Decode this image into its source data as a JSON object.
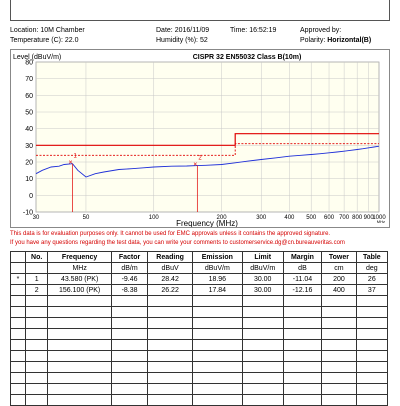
{
  "header": {
    "location_label": "Location:",
    "location_value": "10M Chamber",
    "temperature_label": "Temperature (C):",
    "temperature_value": "22.0",
    "date_label": "Date:",
    "date_value": "2016/11/09",
    "time_label": "Time:",
    "time_value": "16:52:19",
    "humidity_label": "Humidity (%):",
    "humidity_value": "52",
    "approved_label": "Approved by:",
    "polarity_label": "Polarity:",
    "polarity_value": "Horizontal(B)"
  },
  "chart_data": {
    "type": "line",
    "ylabel": "Level (dBuV/m)",
    "title": "CISPR 32 EN55032   Class B(10m)",
    "xlabel": "Frequency (MHz)",
    "x_unit": "MHz",
    "xscale": "log",
    "xlim": [
      30,
      1000
    ],
    "ylim": [
      -10,
      80
    ],
    "x_ticks": [
      30,
      50,
      100,
      200,
      300,
      400,
      500,
      600,
      700,
      800,
      900,
      1000
    ],
    "y_ticks": [
      -10,
      0,
      10,
      20,
      30,
      40,
      50,
      60,
      70,
      80
    ],
    "grid": true,
    "limit_line": {
      "x": [
        30,
        230,
        230,
        1000
      ],
      "y": [
        30,
        30,
        37,
        37
      ],
      "color": "#e00000"
    },
    "margin_line": {
      "x": [
        30,
        230,
        230,
        1000
      ],
      "y": [
        24,
        24,
        31,
        31
      ],
      "color": "#e00000",
      "style": "dashed"
    },
    "trace": {
      "color": "#1f2fd8",
      "x": [
        30,
        32,
        35,
        38,
        40,
        43.58,
        46,
        50,
        55,
        60,
        70,
        80,
        90,
        100,
        120,
        140,
        156.1,
        170,
        200,
        230,
        260,
        300,
        350,
        400,
        450,
        500,
        550,
        600,
        650,
        700,
        750,
        800,
        850,
        900,
        950,
        1000
      ],
      "y": [
        13,
        15,
        17,
        17.5,
        18.5,
        18.96,
        15,
        11,
        13,
        14,
        15.5,
        16,
        16.5,
        17,
        17.5,
        17.6,
        17.84,
        18,
        18.5,
        19.5,
        20.5,
        21.5,
        22.5,
        23.5,
        24,
        24.5,
        25,
        25.5,
        26,
        26.5,
        27,
        27.5,
        28,
        28.5,
        29,
        29.5
      ]
    },
    "markers": [
      {
        "label": "1",
        "x": 43.58,
        "y": 18.96
      },
      {
        "label": "2",
        "x": 156.1,
        "y": 17.84
      }
    ]
  },
  "notice": {
    "line1": "This data is for evaluation purposes only.  It cannot be used for EMC approvals unless it contains the approved signature.",
    "line2": "If you have any questions regarding the test data, you can write your comments to customerservice.dg@cn.bureauveritas.com"
  },
  "table": {
    "headers": [
      "No.",
      "Frequency",
      "Factor",
      "Reading",
      "Emission",
      "Limit",
      "Margin",
      "Tower",
      "Table"
    ],
    "units": [
      "",
      "MHz",
      "dB/m",
      "dBuV",
      "dBuV/m",
      "dBuV/m",
      "dB",
      "cm",
      "deg"
    ],
    "rows": [
      {
        "mark": "*",
        "cells": [
          "1",
          "43.580 (PK)",
          "-9.46",
          "28.42",
          "18.96",
          "30.00",
          "-11.04",
          "200",
          "26"
        ]
      },
      {
        "mark": "",
        "cells": [
          "2",
          "156.100 (PK)",
          "-8.38",
          "26.22",
          "17.84",
          "30.00",
          "-12.16",
          "400",
          "37"
        ]
      }
    ],
    "empty_rows": 10
  }
}
